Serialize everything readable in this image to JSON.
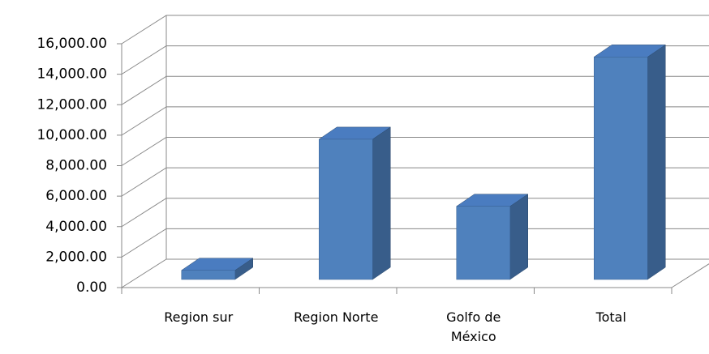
{
  "chart_data": {
    "type": "bar3d",
    "categories": [
      "Region sur",
      "Region Norte",
      "Golfo de México",
      "Total"
    ],
    "values": [
      600,
      9200,
      4800,
      14600
    ],
    "color": "#4f81bd",
    "ylim": [
      0,
      16000
    ],
    "yticks": [
      {
        "value": 0,
        "label": "0.00"
      },
      {
        "value": 2000,
        "label": "2,000.00"
      },
      {
        "value": 4000,
        "label": "4,000.00"
      },
      {
        "value": 6000,
        "label": "6,000.00"
      },
      {
        "value": 8000,
        "label": "8,000.00"
      },
      {
        "value": 10000,
        "label": "10,000.00"
      },
      {
        "value": 12000,
        "label": "12,000.00"
      },
      {
        "value": 14000,
        "label": "14,000.00"
      },
      {
        "value": 16000,
        "label": "16,000.00"
      }
    ],
    "grid": true
  }
}
